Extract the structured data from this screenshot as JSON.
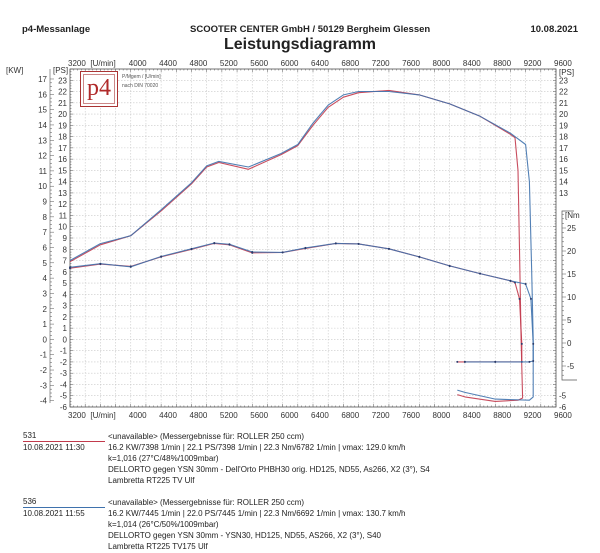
{
  "header": {
    "left": "p4-Messanlage",
    "center": "SCOOTER CENTER GmbH / 50129 Bergheim Glessen",
    "date": "10.08.2021",
    "title": "Leistungsdiagramm"
  },
  "legend_box": {
    "logo_text": "p4",
    "line1": "P/Mgem / [U/min]",
    "line2": "nach DIN 70020"
  },
  "colors": {
    "run_531": "#c23a4c",
    "run_536": "#3f72ad",
    "grid": "#c8c8c8",
    "axis": "#555555"
  },
  "chart_data": {
    "type": "line",
    "title": "Leistungsdiagramm",
    "x_axis": {
      "unit_label": "[U/min]",
      "range": [
        3200,
        9600
      ],
      "ticks": [
        3200,
        4000,
        4400,
        4800,
        5200,
        5600,
        6000,
        6400,
        6800,
        7200,
        7600,
        8000,
        8400,
        8800,
        9200,
        9600
      ],
      "grid": true
    },
    "y_axis_kw": {
      "unit_label": "[KW]",
      "range": [
        -4,
        17
      ],
      "ticks": [
        17,
        16,
        15,
        14,
        13,
        12,
        11,
        10,
        9,
        8,
        7,
        6,
        5,
        4,
        3,
        2,
        1,
        0,
        -1,
        -2,
        -3,
        -4
      ]
    },
    "y_axis_ps": {
      "unit_label": "[PS]",
      "range": [
        -6,
        24
      ],
      "ticks": [
        23,
        22,
        21,
        20,
        19,
        18,
        17,
        16,
        15,
        14,
        13,
        12,
        11,
        10,
        9,
        8,
        7,
        6,
        5,
        4,
        3,
        2,
        1,
        0,
        -1,
        -2,
        -3,
        -4,
        -5,
        -6
      ],
      "grid": true
    },
    "y_axis_ps_right": {
      "unit_label": "[PS]",
      "ticks": [
        23,
        22,
        21,
        20,
        19,
        18,
        17,
        16,
        15,
        14,
        13
      ]
    },
    "y_axis_nm": {
      "unit_label": "[Nm",
      "ticks": [
        25,
        20,
        15,
        10,
        5,
        0,
        -5
      ]
    },
    "y_axis_ps_right_bottom": {
      "ticks": [
        -5,
        -6
      ]
    },
    "series": [
      {
        "name": "531",
        "quantity": "power_PS",
        "color": "#c23a4c",
        "x": [
          3200,
          3600,
          4000,
          4400,
          4800,
          5000,
          5160,
          5550,
          5980,
          6200,
          6400,
          6600,
          6800,
          7000,
          7400,
          7800,
          8200,
          8600,
          9000,
          9060,
          9100,
          9120,
          9140,
          9160,
          9100,
          8800,
          8400,
          8300
        ],
        "y": [
          6.9,
          8.4,
          9.2,
          11.4,
          13.8,
          15.3,
          15.7,
          15.1,
          16.4,
          17.2,
          19.0,
          20.6,
          21.5,
          21.9,
          22.1,
          21.7,
          20.9,
          19.8,
          18.2,
          17.9,
          15.0,
          8.0,
          0,
          -5.2,
          -5.4,
          -5.5,
          -5.1,
          -4.9
        ]
      },
      {
        "name": "536",
        "quantity": "power_PS",
        "color": "#3f72ad",
        "x": [
          3200,
          3600,
          4000,
          4400,
          4800,
          5000,
          5160,
          5550,
          5980,
          6200,
          6400,
          6600,
          6800,
          7000,
          7400,
          7800,
          8200,
          8600,
          9000,
          9200,
          9250,
          9280,
          9300,
          9300,
          9250,
          8800,
          8400,
          8300
        ],
        "y": [
          7.0,
          8.5,
          9.2,
          11.5,
          13.9,
          15.4,
          15.8,
          15.3,
          16.5,
          17.3,
          19.2,
          20.8,
          21.7,
          22.0,
          22.0,
          21.7,
          20.9,
          19.8,
          18.3,
          17.3,
          14.0,
          6.0,
          0,
          -5.1,
          -5.4,
          -5.3,
          -4.7,
          -4.5
        ]
      },
      {
        "name": "531",
        "quantity": "torque_Nm",
        "color": "#c23a4c",
        "x": [
          3200,
          3600,
          4000,
          4400,
          4800,
          5100,
          5300,
          5600,
          6000,
          6300,
          6700,
          7000,
          7400,
          7800,
          8200,
          8600,
          9000,
          9060,
          9120,
          9150,
          9150,
          8800,
          8400,
          8300
        ],
        "y": [
          16.8,
          17.7,
          17.2,
          19.3,
          21.0,
          22.3,
          22.0,
          20.2,
          20.3,
          21.2,
          22.3,
          22.2,
          21.1,
          19.3,
          17.3,
          15.6,
          14.0,
          13.6,
          10.0,
          0,
          -4.0,
          -4.0,
          -4.0,
          -4.0
        ]
      },
      {
        "name": "536",
        "quantity": "torque_Nm",
        "color": "#3f72ad",
        "x": [
          3200,
          3600,
          4000,
          4400,
          4800,
          5100,
          5300,
          5600,
          6000,
          6300,
          6700,
          7000,
          7400,
          7800,
          8200,
          8600,
          9000,
          9200,
          9270,
          9300,
          9300,
          9250,
          8800,
          8400
        ],
        "y": [
          17.0,
          17.8,
          17.1,
          19.4,
          21.1,
          22.4,
          22.1,
          20.4,
          20.3,
          21.3,
          22.3,
          22.2,
          21.1,
          19.3,
          17.3,
          15.6,
          14.0,
          13.3,
          10.0,
          0,
          -3.8,
          -4.0,
          -4.0,
          -4.0
        ]
      }
    ]
  },
  "runs": [
    {
      "id": "531",
      "datetime": "10.08.2021  11:30",
      "lines": [
        "<unavailable> (Messergebnisse für: ROLLER 250 ccm)",
        "16.2 KW/7398 1/min  |  22.1 PS/7398 1/min  |  22.3 Nm/6782 1/min | vmax: 129.0 km/h",
        "k=1,016 (27°C/48%/1009mbar)",
        "DELLORTO gegen YSN 30mm - Dell'Orto PHBH30 orig. HD125, ND55, As266, X2 (3°), S4",
        "Lambretta RT225 TV Ulf"
      ]
    },
    {
      "id": "536",
      "datetime": "10.08.2021  11:55",
      "lines": [
        "<unavailable> (Messergebnisse für: ROLLER 250 ccm)",
        "16.2 KW/7445 1/min  |  22.0 PS/7445 1/min  |  22.3 Nm/6692 1/min | vmax: 130.7 km/h",
        "k=1,014 (26°C/50%/1009mbar)",
        "DELLORTO gegen YSN 30mm - YSN30, HD125, ND55, AS266, X2 (3°), S40",
        "Lambretta RT225 TV175 Ulf"
      ]
    }
  ]
}
